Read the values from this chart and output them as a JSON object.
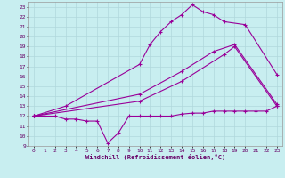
{
  "xlabel": "Windchill (Refroidissement éolien,°C)",
  "bg_color": "#c8eef0",
  "grid_color": "#b0d8dc",
  "line_color": "#990099",
  "xlim": [
    -0.5,
    23.5
  ],
  "ylim": [
    9,
    23.5
  ],
  "xticks": [
    0,
    1,
    2,
    3,
    4,
    5,
    6,
    7,
    8,
    9,
    10,
    11,
    12,
    13,
    14,
    15,
    16,
    17,
    18,
    19,
    20,
    21,
    22,
    23
  ],
  "yticks": [
    9,
    10,
    11,
    12,
    13,
    14,
    15,
    16,
    17,
    18,
    19,
    20,
    21,
    22,
    23
  ],
  "line1_x": [
    0,
    1,
    2,
    3,
    4,
    5,
    6,
    7,
    8,
    9,
    10,
    11,
    12,
    13,
    14,
    15,
    16,
    17,
    18,
    19,
    20,
    21,
    22,
    23
  ],
  "line1_y": [
    12,
    12,
    12,
    11.7,
    11.7,
    11.5,
    11.5,
    9.3,
    10.3,
    12,
    12,
    12,
    12,
    12,
    12.2,
    12.3,
    12.3,
    12.5,
    12.5,
    12.5,
    12.5,
    12.5,
    12.5,
    13
  ],
  "line2_x": [
    0,
    3,
    10,
    11,
    12,
    13,
    14,
    15,
    16,
    17,
    18,
    20,
    23
  ],
  "line2_y": [
    12,
    13,
    17.2,
    19.2,
    20.5,
    21.5,
    22.2,
    23.2,
    22.5,
    22.2,
    21.5,
    21.2,
    16.2
  ],
  "line3_x": [
    0,
    10,
    14,
    17,
    19,
    23
  ],
  "line3_y": [
    12,
    14.2,
    16.5,
    18.5,
    19.2,
    13.2
  ],
  "line4_x": [
    0,
    10,
    14,
    18,
    19,
    23
  ],
  "line4_y": [
    12,
    13.5,
    15.5,
    18.2,
    19.0,
    13.0
  ]
}
